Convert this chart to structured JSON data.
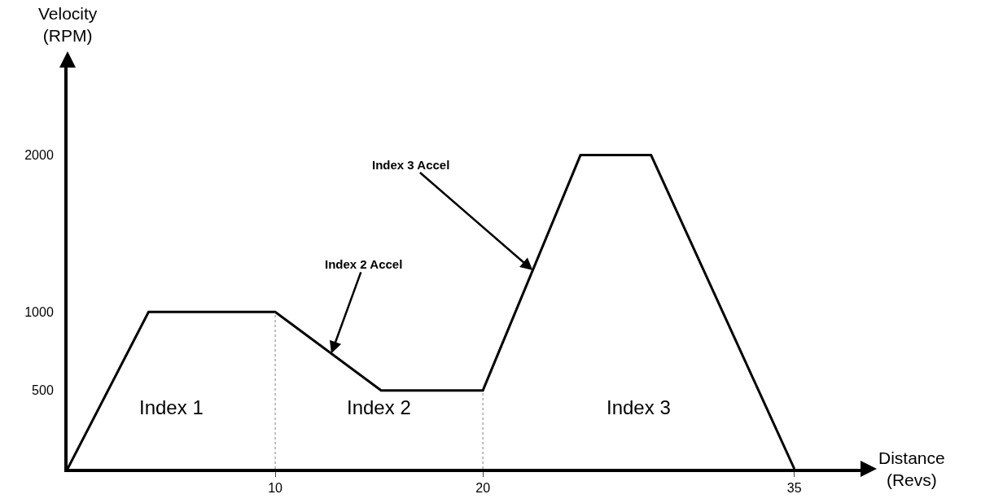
{
  "chart_data": {
    "type": "line",
    "xlabel": "Distance\n(Revs)",
    "ylabel": "Velocity\n(RPM)",
    "x": [
      0,
      3.9,
      10,
      15.1,
      20,
      24.7,
      28.1,
      35
    ],
    "values": [
      0,
      1000,
      1000,
      500,
      500,
      2000,
      2000,
      0
    ],
    "color": "#000000",
    "marker": "none",
    "line_style": "solid",
    "xlim": [
      0,
      38.5
    ],
    "xticks": [
      10,
      20,
      35
    ],
    "ylim": [
      0,
      2600
    ],
    "yticks": [
      500,
      1000,
      2000
    ],
    "ref_lines": [
      {
        "axis": "x",
        "value": 10,
        "line_style": "dotted",
        "color": "#808080"
      },
      {
        "axis": "x",
        "value": 20,
        "line_style": "dotted",
        "color": "#808080"
      }
    ],
    "annotations": [
      "Index 1",
      "Index 2",
      "Index 3",
      {
        "text": "Index 2 Accel",
        "x": 12.7,
        "y": 735
      },
      {
        "text": "Index 3 Accel",
        "x": 22.4,
        "y": 1266
      }
    ]
  }
}
